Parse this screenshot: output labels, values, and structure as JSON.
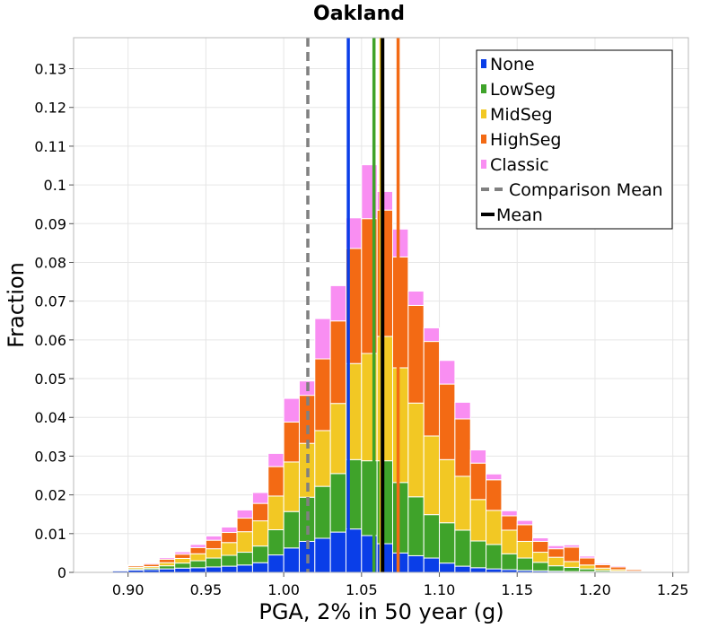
{
  "chart_data": {
    "type": "bar",
    "stacked": true,
    "title": "Oakland",
    "xlabel": "PGA, 2% in 50 year (g)",
    "ylabel": "Fraction",
    "xlim": [
      0.865,
      1.26
    ],
    "ylim": [
      0,
      0.138
    ],
    "xticks": [
      "0.90",
      "0.95",
      "1.00",
      "1.05",
      "1.10",
      "1.15",
      "1.20",
      "1.25"
    ],
    "yticks": [
      "0",
      "0.01",
      "0.02",
      "0.03",
      "0.04",
      "0.05",
      "0.06",
      "0.07",
      "0.08",
      "0.09",
      "0.1",
      "0.11",
      "0.12",
      "0.13"
    ],
    "grid": true,
    "legend_position": "top-right",
    "bin_width": 0.01,
    "x": [
      0.875,
      0.885,
      0.895,
      0.905,
      0.915,
      0.925,
      0.935,
      0.945,
      0.955,
      0.965,
      0.975,
      0.985,
      0.995,
      1.005,
      1.015,
      1.025,
      1.035,
      1.045,
      1.055,
      1.065,
      1.075,
      1.085,
      1.095,
      1.105,
      1.115,
      1.125,
      1.135,
      1.145,
      1.155,
      1.165,
      1.175,
      1.185,
      1.195,
      1.205,
      1.215,
      1.225,
      1.235
    ],
    "series": [
      {
        "name": "None",
        "color": "#0a3ee8",
        "values": [
          0,
          0.0002,
          0.0004,
          0.0006,
          0.0007,
          0.0009,
          0.0011,
          0.0012,
          0.0014,
          0.0016,
          0.0019,
          0.0025,
          0.0045,
          0.0063,
          0.008,
          0.0088,
          0.0104,
          0.0112,
          0.0095,
          0.0074,
          0.005,
          0.0043,
          0.0037,
          0.0024,
          0.0016,
          0.0012,
          0.0009,
          0.0007,
          0.0005,
          0.0004,
          0.0003,
          0.0002,
          0.0002,
          0.0001,
          0.0001,
          0,
          0
        ]
      },
      {
        "name": "LowSeg",
        "color": "#3fa32a",
        "values": [
          0,
          0,
          0.0002,
          0.0003,
          0.0004,
          0.0008,
          0.0013,
          0.0018,
          0.0023,
          0.0028,
          0.0033,
          0.0043,
          0.0065,
          0.0094,
          0.0114,
          0.0134,
          0.0151,
          0.0179,
          0.0193,
          0.0214,
          0.0182,
          0.0152,
          0.0112,
          0.0104,
          0.0093,
          0.0069,
          0.0063,
          0.0041,
          0.0032,
          0.0022,
          0.0014,
          0.0011,
          0.0007,
          0.0004,
          0.0002,
          0.0001,
          0
        ]
      },
      {
        "name": "MidSeg",
        "color": "#f2c824",
        "values": [
          0,
          0.0001,
          0.0002,
          0.0004,
          0.0004,
          0.0008,
          0.0012,
          0.0018,
          0.0024,
          0.0033,
          0.0053,
          0.0065,
          0.0087,
          0.0128,
          0.0139,
          0.0144,
          0.0181,
          0.0248,
          0.0277,
          0.0321,
          0.0296,
          0.0242,
          0.0203,
          0.0163,
          0.0139,
          0.0107,
          0.0088,
          0.0061,
          0.0043,
          0.0026,
          0.0022,
          0.0015,
          0.001,
          0.0006,
          0.0004,
          0.0002,
          0.0001
        ]
      },
      {
        "name": "HighSeg",
        "color": "#f36a14",
        "values": [
          0,
          0.0001,
          0.0002,
          0.0004,
          0.0006,
          0.0009,
          0.0011,
          0.0016,
          0.0022,
          0.0026,
          0.0035,
          0.0045,
          0.0076,
          0.0103,
          0.0124,
          0.0185,
          0.0213,
          0.0297,
          0.0348,
          0.0326,
          0.0286,
          0.0252,
          0.0244,
          0.0195,
          0.0148,
          0.0094,
          0.0079,
          0.0037,
          0.0043,
          0.0028,
          0.0022,
          0.0037,
          0.0018,
          0.0009,
          0.0007,
          0.0004,
          0.0002
        ]
      },
      {
        "name": "Classic",
        "color": "#f98ef2",
        "values": [
          0,
          0,
          0.0001,
          0.0002,
          0.0003,
          0.0004,
          0.0006,
          0.0008,
          0.0011,
          0.0014,
          0.0021,
          0.0028,
          0.0034,
          0.0061,
          0.0037,
          0.0104,
          0.0091,
          0.0079,
          0.0139,
          0.0048,
          0.0072,
          0.0037,
          0.0035,
          0.0061,
          0.0043,
          0.0034,
          0.0015,
          0.0013,
          0.0011,
          0.0009,
          0.0008,
          0.0006,
          0.0005,
          0.0003,
          0.0003,
          0.0002,
          0.0001
        ]
      }
    ],
    "vertical_lines": [
      {
        "name": "None mean",
        "x": 1.0415,
        "color": "#0a3ee8",
        "style": "solid"
      },
      {
        "name": "LowSeg mean",
        "x": 1.058,
        "color": "#3fa32a",
        "style": "solid"
      },
      {
        "name": "HighSeg mean",
        "x": 1.0735,
        "color": "#f36a14",
        "style": "solid"
      },
      {
        "name": "MidSeg mean",
        "x": 1.0625,
        "color": "#f2c824",
        "style": "solid"
      },
      {
        "name": "Comparison Mean",
        "x": 1.0155,
        "color": "#808080",
        "style": "dashed"
      },
      {
        "name": "Mean",
        "x": 1.0635,
        "color": "#000000",
        "style": "solid"
      }
    ],
    "legend": [
      {
        "label": "None",
        "color": "#0a3ee8",
        "kind": "swatch"
      },
      {
        "label": "LowSeg",
        "color": "#3fa32a",
        "kind": "swatch"
      },
      {
        "label": "MidSeg",
        "color": "#f2c824",
        "kind": "swatch"
      },
      {
        "label": "HighSeg",
        "color": "#f36a14",
        "kind": "swatch"
      },
      {
        "label": "Classic",
        "color": "#f98ef2",
        "kind": "swatch"
      },
      {
        "label": "Comparison Mean",
        "color": "#808080",
        "kind": "dashed"
      },
      {
        "label": "Mean",
        "color": "#000000",
        "kind": "line"
      }
    ]
  }
}
